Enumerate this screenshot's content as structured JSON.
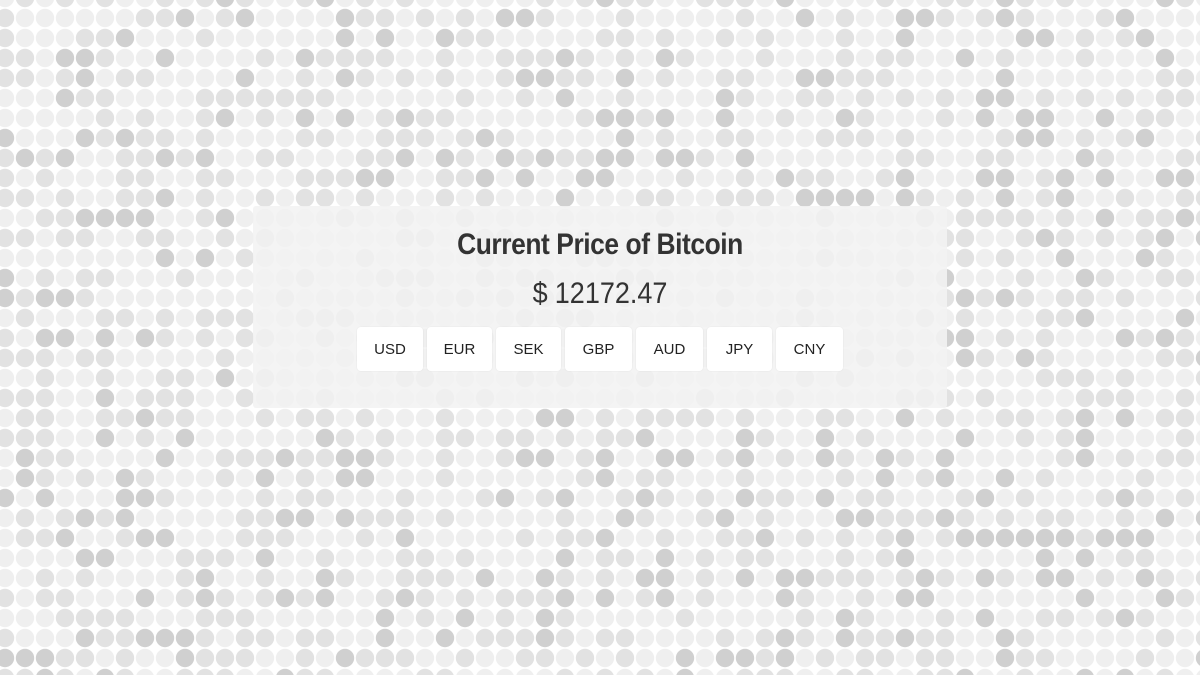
{
  "title": "Current Price of Bitcoin",
  "price": {
    "symbol": "$",
    "value": "12172.47"
  },
  "currencies": [
    "USD",
    "EUR",
    "SEK",
    "GBP",
    "AUD",
    "JPY",
    "CNY"
  ],
  "colors": {
    "card_background": "#f2f2f2",
    "text": "#333333",
    "button_background": "#ffffff",
    "dot_light": "#efefef",
    "dot_mid": "#e2e2e2",
    "dot_dark": "#d0d0d0"
  }
}
